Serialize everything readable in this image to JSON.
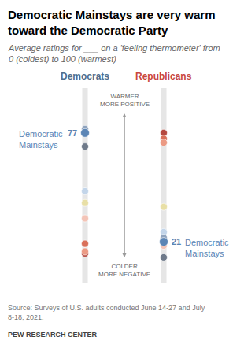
{
  "chart_data": {
    "type": "scatter",
    "title": "Democratic Mainstays are very warm toward the Democratic Party",
    "subtitle": "Average ratings for ___ on a 'feeling thermometer' from 0 (coldest) to 100 (warmest)",
    "source": "Source: Surveys of U.S. adults conducted June 14-27 and July 8-18, 2021.",
    "credit": "PEW RESEARCH CENTER",
    "categories": [
      "Democrats",
      "Republicans"
    ],
    "ylim": [
      0,
      100
    ],
    "tick_labels": false,
    "grid": false,
    "marker": "circle",
    "annotations": [
      {
        "text": "WARMER\nMORE POSITIVE"
      },
      {
        "text": "COLDER\nMORE NEGATIVE"
      }
    ],
    "series": [
      {
        "color": "#b5483f",
        "values": [
          15,
          77
        ]
      },
      {
        "color": "#d9705a",
        "values": [
          20,
          74
        ]
      },
      {
        "color": "#eb9a84",
        "values": [
          16,
          72
        ]
      },
      {
        "color": "#f3c4b7",
        "values": [
          33,
          19
        ]
      },
      {
        "color": "#e8dfa6",
        "values": [
          41,
          39
        ]
      },
      {
        "color": "#c3d5e9",
        "values": [
          47,
          26
        ]
      },
      {
        "color": "#6f7a8a",
        "values": [
          70,
          13
        ]
      },
      {
        "color": "#8fa3bd",
        "values": [
          79,
          23
        ]
      },
      {
        "name": "Democratic Mainstays",
        "color": "#5b85b5",
        "values": [
          77,
          21
        ],
        "data_labels": true
      }
    ]
  }
}
